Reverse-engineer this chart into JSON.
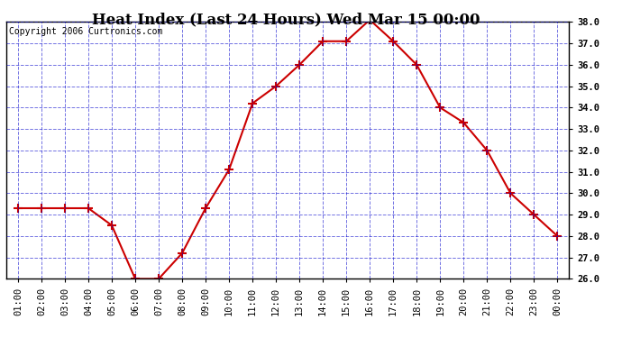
{
  "title": "Heat Index (Last 24 Hours) Wed Mar 15 00:00",
  "copyright": "Copyright 2006 Curtronics.com",
  "x_labels": [
    "01:00",
    "02:00",
    "03:00",
    "04:00",
    "05:00",
    "06:00",
    "07:00",
    "08:00",
    "09:00",
    "10:00",
    "11:00",
    "12:00",
    "13:00",
    "14:00",
    "15:00",
    "16:00",
    "17:00",
    "18:00",
    "19:00",
    "20:00",
    "21:00",
    "22:00",
    "23:00",
    "00:00"
  ],
  "y_values": [
    29.3,
    29.3,
    29.3,
    29.3,
    28.5,
    26.0,
    26.0,
    27.2,
    29.3,
    31.1,
    34.2,
    35.0,
    36.0,
    37.1,
    37.1,
    38.1,
    37.1,
    36.0,
    34.0,
    33.3,
    32.0,
    30.0,
    29.0,
    28.0
  ],
  "line_color": "#cc0000",
  "marker": "+",
  "marker_size": 7,
  "marker_linewidth": 1.5,
  "line_width": 1.5,
  "bg_color": "#ffffff",
  "plot_bg_color": "#ffffff",
  "grid_color": "#0000cc",
  "grid_alpha": 0.55,
  "grid_linestyle": "--",
  "y_min": 26.0,
  "y_max": 38.0,
  "y_tick_interval": 1.0,
  "title_fontsize": 12,
  "copyright_fontsize": 7,
  "tick_fontsize": 7.5,
  "border_color": "#000000"
}
